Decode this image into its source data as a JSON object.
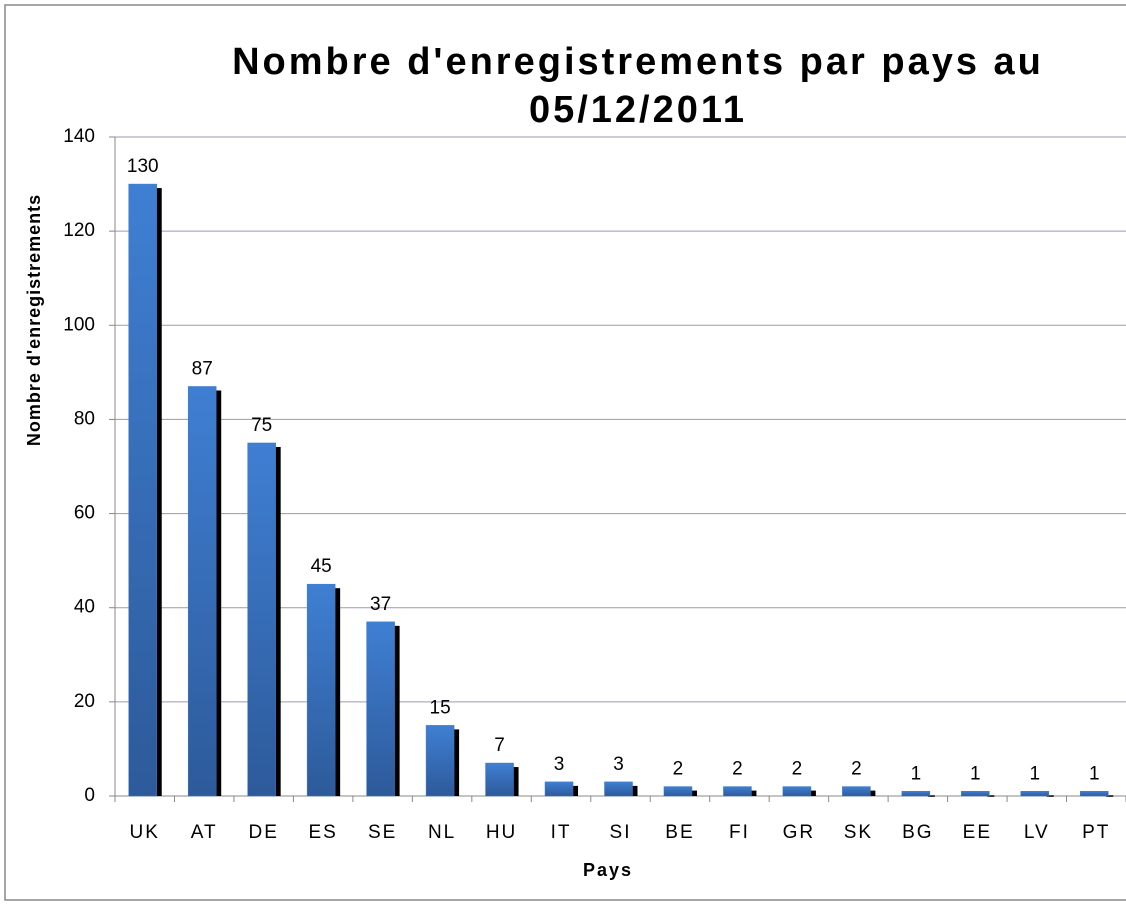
{
  "chart_data": {
    "type": "bar",
    "title": "Nombre d'enregistrements par pays au 05/12/2011",
    "x_label": "Pays",
    "y_label": "Nombre d'enregistrements",
    "categories": [
      "UK",
      "AT",
      "DE",
      "ES",
      "SE",
      "NL",
      "HU",
      "IT",
      "SI",
      "BE",
      "FI",
      "GR",
      "SK",
      "BG",
      "EE",
      "LV",
      "PT"
    ],
    "values": [
      130,
      87,
      75,
      45,
      37,
      15,
      7,
      3,
      3,
      2,
      2,
      2,
      2,
      1,
      1,
      1,
      1
    ],
    "color": "#3a78c9",
    "ylim": [
      0,
      140
    ],
    "yticks": [
      0,
      20,
      40,
      60,
      80,
      100,
      120,
      140
    ],
    "grid": true
  }
}
